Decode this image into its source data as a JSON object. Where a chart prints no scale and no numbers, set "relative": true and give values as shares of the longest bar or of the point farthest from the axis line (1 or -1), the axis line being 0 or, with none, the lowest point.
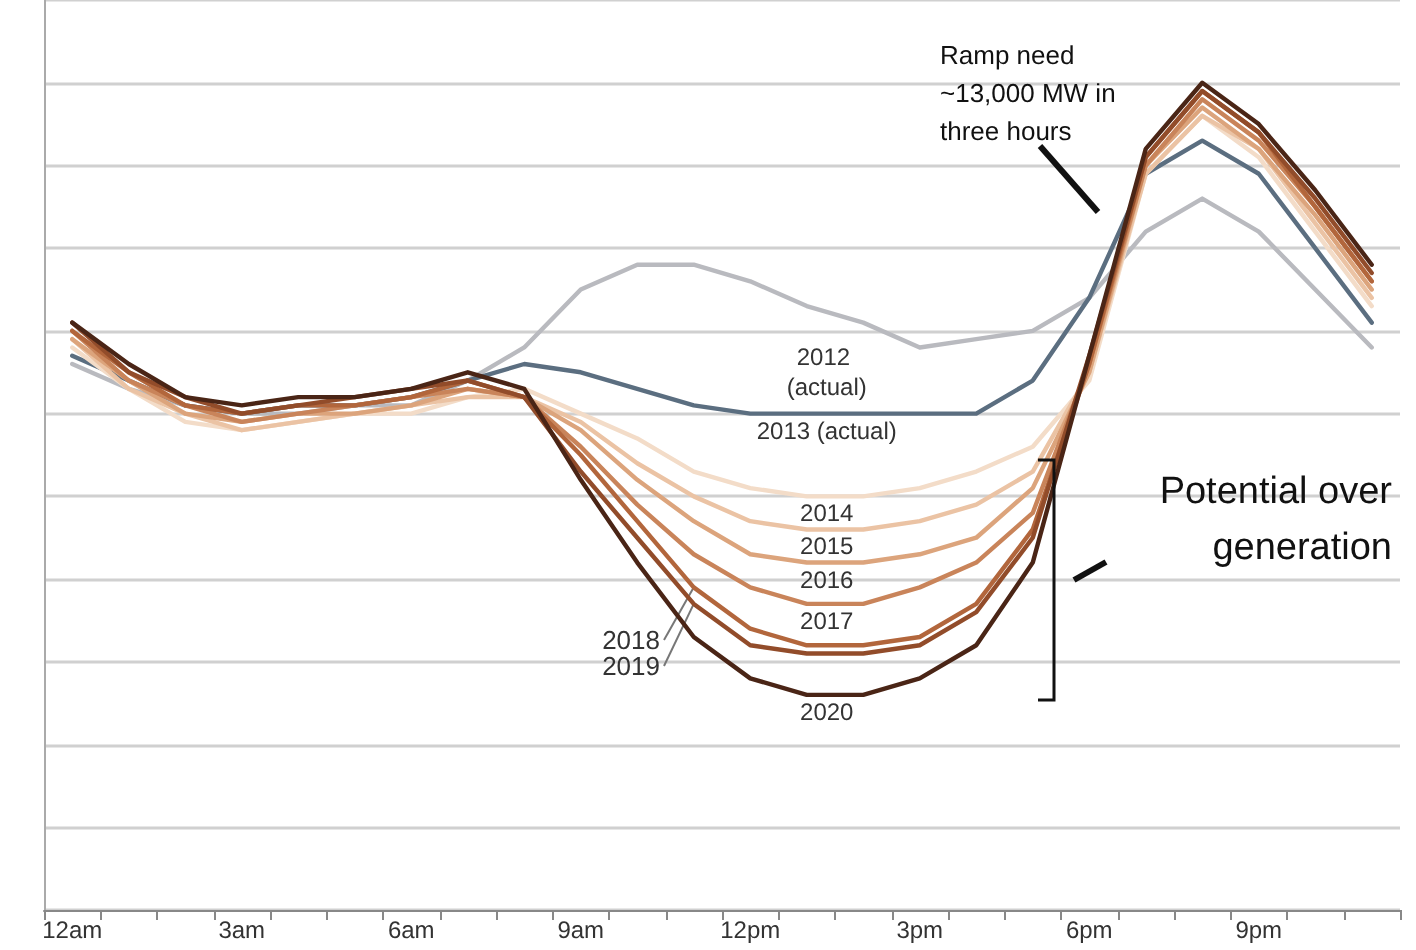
{
  "chart_data": {
    "type": "line",
    "relative": true,
    "grid": "y",
    "marker": "none",
    "line_style": "solid",
    "categories": [
      "12am",
      null,
      null,
      "3am",
      null,
      null,
      "6am",
      null,
      null,
      "9am",
      null,
      null,
      "12pm",
      null,
      null,
      "3pm",
      null,
      null,
      "6pm",
      null,
      null,
      "9pm",
      null,
      null
    ],
    "series": [
      {
        "name": "2012 (actual)",
        "color": "#b9babf",
        "values": [
          0.66,
          0.63,
          0.61,
          0.6,
          0.6,
          0.61,
          0.61,
          0.64,
          0.68,
          0.75,
          0.78,
          0.78,
          0.76,
          0.73,
          0.71,
          0.68,
          0.69,
          0.7,
          0.74,
          0.82,
          0.86,
          0.82,
          0.75,
          0.68
        ]
      },
      {
        "name": "2013 (actual)",
        "color": "#5b6e80",
        "values": [
          0.67,
          0.64,
          0.61,
          0.6,
          0.61,
          0.61,
          0.62,
          0.64,
          0.66,
          0.65,
          0.63,
          0.61,
          0.6,
          0.6,
          0.6,
          0.6,
          0.6,
          0.64,
          0.74,
          0.89,
          0.93,
          0.89,
          0.8,
          0.71
        ]
      },
      {
        "name": "2014",
        "color": "#f3dcc8",
        "values": [
          0.68,
          0.63,
          0.59,
          0.58,
          0.59,
          0.6,
          0.6,
          0.62,
          0.63,
          0.6,
          0.57,
          0.53,
          0.51,
          0.5,
          0.5,
          0.51,
          0.53,
          0.56,
          0.64,
          0.89,
          0.96,
          0.91,
          0.82,
          0.73
        ]
      },
      {
        "name": "2015",
        "color": "#ebc3a4",
        "values": [
          0.69,
          0.63,
          0.6,
          0.58,
          0.59,
          0.6,
          0.61,
          0.62,
          0.62,
          0.59,
          0.54,
          0.5,
          0.47,
          0.46,
          0.46,
          0.47,
          0.49,
          0.53,
          0.65,
          0.89,
          0.96,
          0.92,
          0.83,
          0.74
        ]
      },
      {
        "name": "2016",
        "color": "#dca47c",
        "values": [
          0.69,
          0.64,
          0.6,
          0.59,
          0.6,
          0.6,
          0.61,
          0.63,
          0.62,
          0.58,
          0.52,
          0.47,
          0.43,
          0.42,
          0.42,
          0.43,
          0.45,
          0.51,
          0.65,
          0.9,
          0.97,
          0.92,
          0.84,
          0.75
        ]
      },
      {
        "name": "2017",
        "color": "#c9845a",
        "values": [
          0.7,
          0.64,
          0.61,
          0.59,
          0.6,
          0.61,
          0.62,
          0.63,
          0.62,
          0.56,
          0.49,
          0.43,
          0.39,
          0.37,
          0.37,
          0.39,
          0.42,
          0.48,
          0.66,
          0.9,
          0.98,
          0.93,
          0.85,
          0.76
        ]
      },
      {
        "name": "2018",
        "color": "#b2663c",
        "values": [
          0.7,
          0.65,
          0.61,
          0.6,
          0.61,
          0.61,
          0.62,
          0.64,
          0.62,
          0.55,
          0.47,
          0.39,
          0.34,
          0.32,
          0.32,
          0.33,
          0.37,
          0.46,
          0.66,
          0.91,
          0.99,
          0.94,
          0.85,
          0.76
        ]
      },
      {
        "name": "2019",
        "color": "#924c2a",
        "values": [
          0.71,
          0.65,
          0.62,
          0.6,
          0.61,
          0.62,
          0.63,
          0.64,
          0.62,
          0.53,
          0.45,
          0.37,
          0.32,
          0.31,
          0.31,
          0.32,
          0.36,
          0.45,
          0.67,
          0.91,
          0.99,
          0.94,
          0.86,
          0.77
        ]
      },
      {
        "name": "2020",
        "color": "#4a2516",
        "values": [
          0.71,
          0.66,
          0.62,
          0.61,
          0.62,
          0.62,
          0.63,
          0.65,
          0.63,
          0.52,
          0.42,
          0.33,
          0.28,
          0.26,
          0.26,
          0.28,
          0.32,
          0.42,
          0.67,
          0.92,
          1,
          0.95,
          0.87,
          0.78
        ]
      }
    ],
    "annotations": [
      "Ramp need ~13,000 MW in three hours",
      "Potential over generation"
    ]
  }
}
